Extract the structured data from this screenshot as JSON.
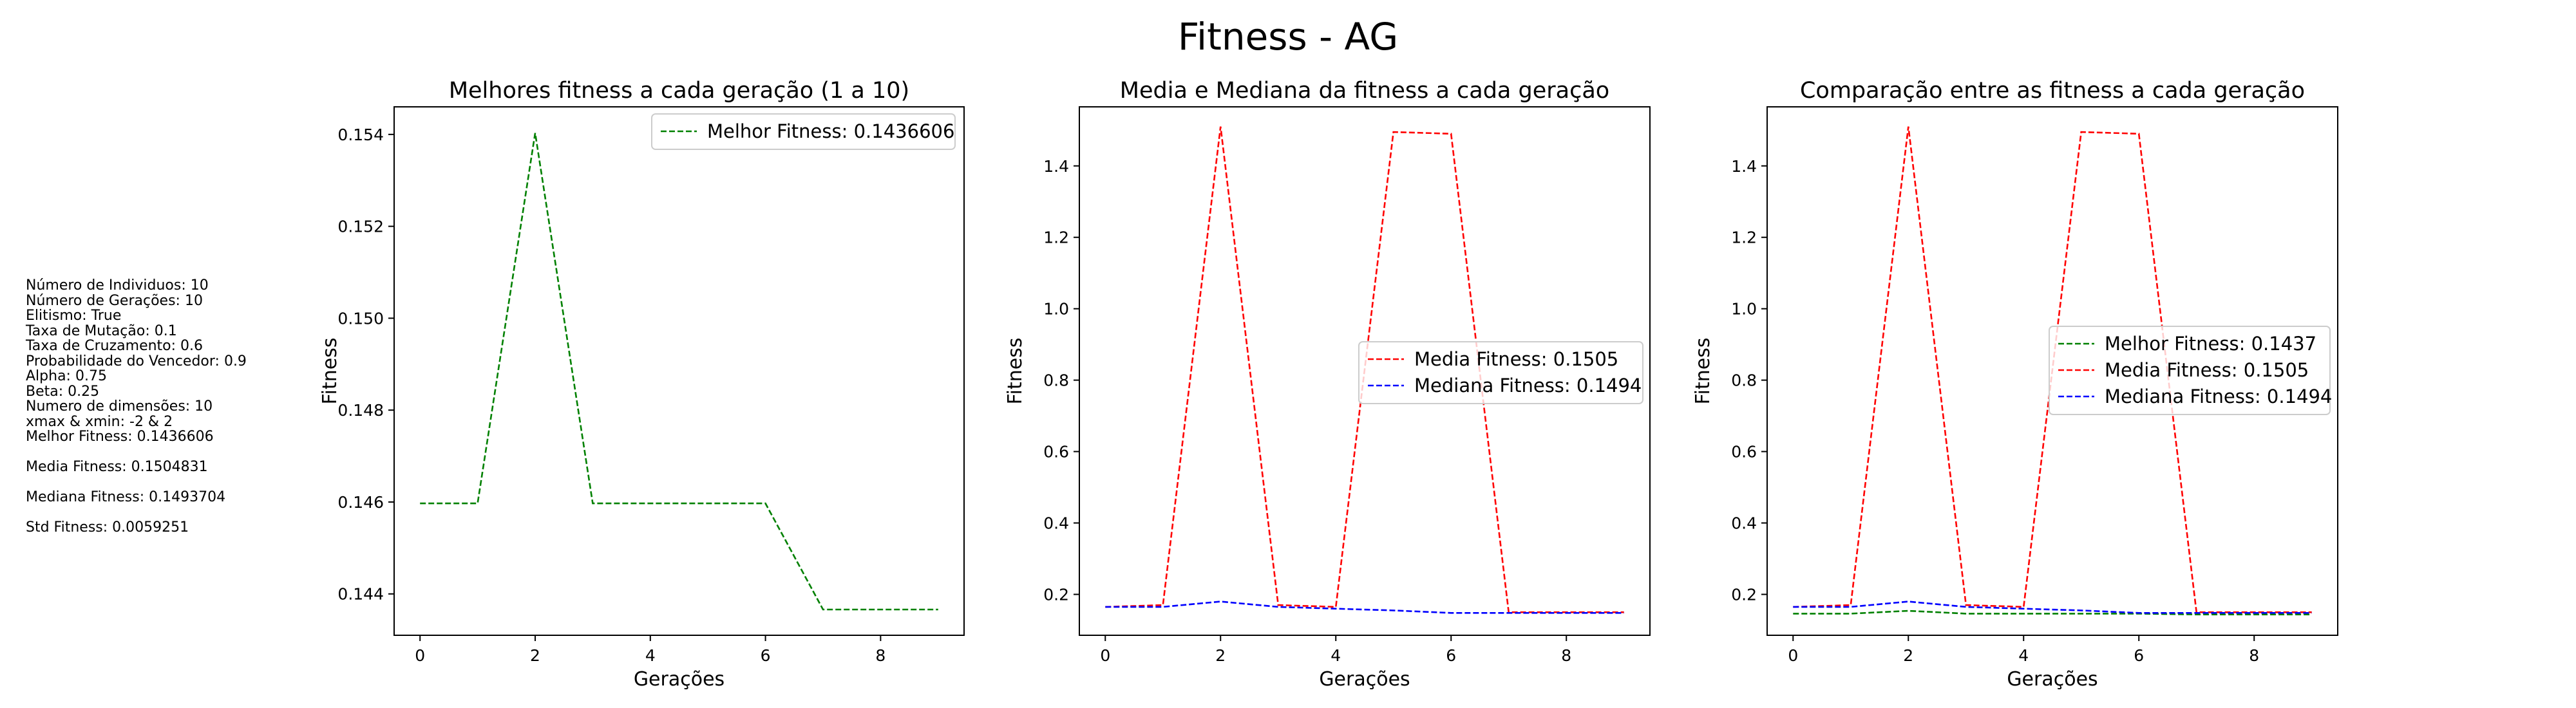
{
  "suptitle": "Fitness - AG",
  "params": [
    "Número de Individuos: 10",
    "Número de Gerações: 10",
    "Elitismo: True",
    "Taxa de Mutação: 0.1",
    "Taxa de Cruzamento: 0.6",
    "Probabilidade do Vencedor: 0.9",
    "Alpha: 0.75",
    "Beta: 0.25",
    "Numero de dimensões: 10",
    "xmax & xmin: -2 & 2",
    "Melhor Fitness: 0.1436606",
    "",
    "Media Fitness: 0.1504831",
    "",
    "Mediana Fitness: 0.1493704",
    "",
    "Std Fitness: 0.0059251"
  ],
  "colors": {
    "green": "#008000",
    "red": "#ff0000",
    "blue": "#0000ff"
  },
  "chart_data": [
    {
      "type": "line",
      "title": "Melhores fitness a cada geração (1 a 10)",
      "xlabel": "Gerações",
      "ylabel": "Fitness",
      "xlim": [
        -0.45,
        9.45
      ],
      "ylim": [
        0.1431,
        0.1546
      ],
      "xticks": [
        0,
        2,
        4,
        6,
        8
      ],
      "yticks": [
        0.144,
        0.146,
        0.148,
        0.15,
        0.152,
        0.154
      ],
      "ytick_labels": [
        "0.144",
        "0.146",
        "0.148",
        "0.150",
        "0.152",
        "0.154"
      ],
      "legend_loc": "upper right",
      "x": [
        0,
        1,
        2,
        3,
        4,
        5,
        6,
        7,
        8,
        9
      ],
      "series": [
        {
          "name": "Melhor Fitness: 0.1436606",
          "color": "#008000",
          "values": [
            0.14597,
            0.14597,
            0.15403,
            0.14597,
            0.14597,
            0.14597,
            0.14597,
            0.14366,
            0.14366,
            0.14366
          ]
        }
      ]
    },
    {
      "type": "line",
      "title": "Media e Mediana da fitness a cada geração",
      "xlabel": "Gerações",
      "ylabel": "Fitness",
      "xlim": [
        -0.45,
        9.45
      ],
      "ylim": [
        0.0855,
        1.5654
      ],
      "xticks": [
        0,
        2,
        4,
        6,
        8
      ],
      "yticks": [
        0.2,
        0.4,
        0.6,
        0.8,
        1.0,
        1.2,
        1.4
      ],
      "ytick_labels": [
        "0.2",
        "0.4",
        "0.6",
        "0.8",
        "1.0",
        "1.2",
        "1.4"
      ],
      "legend_loc": "center right",
      "x": [
        0,
        1,
        2,
        3,
        4,
        5,
        6,
        7,
        8,
        9
      ],
      "series": [
        {
          "name": "Media Fitness: 0.1505",
          "color": "#ff0000",
          "values": [
            0.165,
            0.17,
            1.51,
            0.17,
            0.165,
            1.495,
            1.49,
            0.15,
            0.15,
            0.15
          ]
        },
        {
          "name": "Mediana Fitness: 0.1494",
          "color": "#0000ff",
          "values": [
            0.165,
            0.165,
            0.18,
            0.165,
            0.16,
            0.155,
            0.148,
            0.148,
            0.148,
            0.148
          ]
        }
      ]
    },
    {
      "type": "line",
      "title": "Comparação entre as fitness a cada geração",
      "xlabel": "Gerações",
      "ylabel": "Fitness",
      "xlim": [
        -0.45,
        9.45
      ],
      "ylim": [
        0.0855,
        1.5654
      ],
      "xticks": [
        0,
        2,
        4,
        6,
        8
      ],
      "yticks": [
        0.2,
        0.4,
        0.6,
        0.8,
        1.0,
        1.2,
        1.4
      ],
      "ytick_labels": [
        "0.2",
        "0.4",
        "0.6",
        "0.8",
        "1.0",
        "1.2",
        "1.4"
      ],
      "legend_loc": "center right",
      "x": [
        0,
        1,
        2,
        3,
        4,
        5,
        6,
        7,
        8,
        9
      ],
      "series": [
        {
          "name": "Melhor Fitness: 0.1437",
          "color": "#008000",
          "values": [
            0.146,
            0.146,
            0.154,
            0.146,
            0.146,
            0.146,
            0.146,
            0.1437,
            0.1437,
            0.1437
          ]
        },
        {
          "name": "Media Fitness: 0.1505",
          "color": "#ff0000",
          "values": [
            0.165,
            0.17,
            1.51,
            0.17,
            0.165,
            1.495,
            1.49,
            0.15,
            0.15,
            0.15
          ]
        },
        {
          "name": "Mediana Fitness: 0.1494",
          "color": "#0000ff",
          "values": [
            0.165,
            0.165,
            0.18,
            0.165,
            0.16,
            0.155,
            0.148,
            0.148,
            0.148,
            0.148
          ]
        }
      ]
    }
  ]
}
